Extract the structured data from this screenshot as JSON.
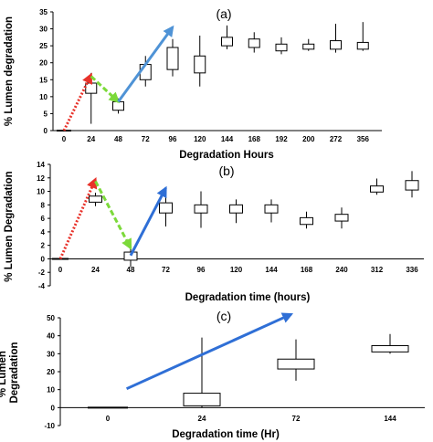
{
  "chart_data": [
    {
      "type": "box",
      "panel_label": "(a)",
      "xlabel": "Degradation Hours",
      "ylabel": "% Lumen degradation",
      "ylim": [
        0,
        35
      ],
      "yticks": [
        0,
        5,
        10,
        15,
        20,
        25,
        30,
        35
      ],
      "categories": [
        "0",
        "24",
        "48",
        "72",
        "96",
        "120",
        "144",
        "168",
        "192",
        "200",
        "272",
        "356"
      ],
      "boxes": [
        {
          "min": 0,
          "q1": 0,
          "q3": 0,
          "max": 0
        },
        {
          "min": 2,
          "q1": 11,
          "q3": 14,
          "max": 17
        },
        {
          "min": 5,
          "q1": 6,
          "q3": 8.5,
          "max": 9.5
        },
        {
          "min": 13,
          "q1": 15,
          "q3": 19.5,
          "max": 22
        },
        {
          "min": 16,
          "q1": 18,
          "q3": 24.5,
          "max": 27
        },
        {
          "min": 13,
          "q1": 17,
          "q3": 22,
          "max": 28
        },
        {
          "min": 24,
          "q1": 25,
          "q3": 27.5,
          "max": 31
        },
        {
          "min": 23,
          "q1": 24.5,
          "q3": 27,
          "max": 29
        },
        {
          "min": 22.5,
          "q1": 23.5,
          "q3": 25.5,
          "max": 27.5
        },
        {
          "min": 23.5,
          "q1": 24,
          "q3": 25.5,
          "max": 27
        },
        {
          "min": 23,
          "q1": 24,
          "q3": 26.5,
          "max": 31.5
        },
        {
          "min": 23.5,
          "q1": 24,
          "q3": 26,
          "max": 32
        }
      ],
      "arrows": [
        {
          "style": "dotted",
          "color": "#e8322a",
          "from": [
            0,
            0
          ],
          "to": [
            1,
            16.5
          ]
        },
        {
          "style": "dashed",
          "color": "#7cd93a",
          "from": [
            1,
            16
          ],
          "to": [
            2,
            8.5
          ]
        },
        {
          "style": "solid",
          "color": "#4f93d6",
          "from": [
            2,
            8.5
          ],
          "to": [
            4,
            30.5
          ]
        }
      ]
    },
    {
      "type": "box",
      "panel_label": "(b)",
      "xlabel": "Degradation time (hours)",
      "ylabel": "% Lumen Degradation",
      "ylim": [
        -4,
        14
      ],
      "yticks": [
        -4,
        -2,
        0,
        2,
        4,
        6,
        8,
        10,
        12,
        14
      ],
      "categories": [
        "0",
        "24",
        "48",
        "72",
        "96",
        "120",
        "144",
        "168",
        "240",
        "312",
        "336"
      ],
      "boxes": [
        {
          "min": 0,
          "q1": 0,
          "q3": 0,
          "max": 0
        },
        {
          "min": 7.8,
          "q1": 8.4,
          "q3": 9.3,
          "max": 9.8
        },
        {
          "min": -1.2,
          "q1": -0.2,
          "q3": 1,
          "max": 2
        },
        {
          "min": 4.8,
          "q1": 6.8,
          "q3": 8.3,
          "max": 9.6
        },
        {
          "min": 4.6,
          "q1": 6.8,
          "q3": 8,
          "max": 10
        },
        {
          "min": 5.3,
          "q1": 6.8,
          "q3": 8,
          "max": 8.8
        },
        {
          "min": 5.4,
          "q1": 6.8,
          "q3": 8,
          "max": 8.8
        },
        {
          "min": 4.5,
          "q1": 5.1,
          "q3": 6.1,
          "max": 7
        },
        {
          "min": 4.5,
          "q1": 5.6,
          "q3": 6.6,
          "max": 7.6
        },
        {
          "min": 9.5,
          "q1": 9.9,
          "q3": 10.8,
          "max": 11.9
        },
        {
          "min": 9.1,
          "q1": 10.2,
          "q3": 11.6,
          "max": 13
        }
      ],
      "arrows": [
        {
          "style": "dotted",
          "color": "#e8322a",
          "from": [
            0,
            0
          ],
          "to": [
            1,
            11.8
          ]
        },
        {
          "style": "dashed",
          "color": "#7cd93a",
          "from": [
            1,
            11.5
          ],
          "to": [
            2,
            1.6
          ]
        },
        {
          "style": "solid",
          "color": "#2f6fd6",
          "from": [
            2,
            0.5
          ],
          "to": [
            3,
            10.5
          ]
        }
      ]
    },
    {
      "type": "box",
      "panel_label": "(c)",
      "xlabel": "Degradation time (Hr)",
      "ylabel": "% Lumen Degradation",
      "ylim": [
        -10,
        50
      ],
      "yticks": [
        -10,
        0,
        10,
        20,
        30,
        40,
        50
      ],
      "categories": [
        "0",
        "24",
        "72",
        "144"
      ],
      "boxes": [
        {
          "min": 0,
          "q1": 0,
          "q3": 0,
          "max": 0
        },
        {
          "min": 0,
          "q1": 1,
          "q3": 8,
          "max": 39
        },
        {
          "min": 15,
          "q1": 21.5,
          "q3": 27,
          "max": 38
        },
        {
          "min": 30,
          "q1": 31,
          "q3": 34.5,
          "max": 41
        }
      ],
      "arrows": [
        {
          "style": "solid",
          "color": "#2f6fd6",
          "from": [
            0.2,
            10.5
          ],
          "to": [
            1.95,
            52
          ]
        }
      ]
    }
  ]
}
